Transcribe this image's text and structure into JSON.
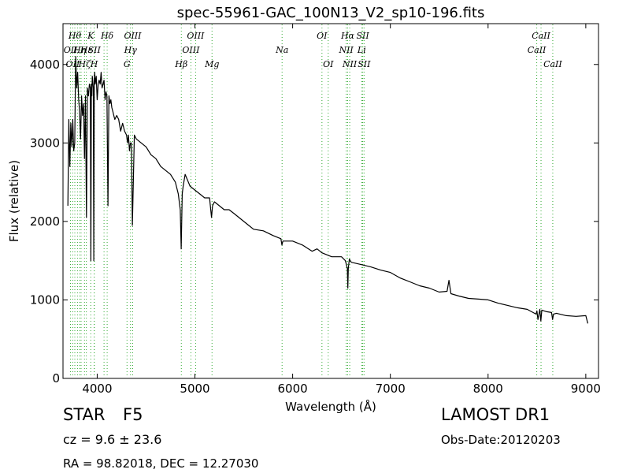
{
  "chart_data": {
    "type": "line",
    "title": "spec-55961-GAC_100N13_V2_sp10-196.fits",
    "xlabel": "Wavelength (Å)",
    "ylabel": "Flux (relative)",
    "xlim": [
      3650,
      9130
    ],
    "ylim": [
      0,
      4520
    ],
    "xticks": [
      4000,
      5000,
      6000,
      7000,
      8000,
      9000
    ],
    "yticks": [
      0,
      1000,
      2000,
      3000,
      4000
    ],
    "grid": false,
    "line_color": "#000000",
    "marker_color": "#33aa33",
    "series": [
      {
        "x": [
          3700,
          3710,
          3720,
          3730,
          3740,
          3750,
          3760,
          3770,
          3780,
          3790,
          3800,
          3810,
          3820,
          3830,
          3840,
          3850,
          3860,
          3870,
          3880,
          3890,
          3900,
          3910,
          3920,
          3930,
          3935,
          3940,
          3945,
          3950,
          3960,
          3965,
          3970,
          3975,
          3980,
          3990,
          4000,
          4010,
          4020,
          4030,
          4040,
          4050,
          4060,
          4070,
          4080,
          4090,
          4100,
          4110,
          4120,
          4130,
          4140,
          4150,
          4160,
          4170,
          4180,
          4200,
          4220,
          4240,
          4260,
          4280,
          4300,
          4310,
          4320,
          4330,
          4340,
          4350,
          4360,
          4380,
          4400,
          4450,
          4500,
          4550,
          4600,
          4650,
          4700,
          4750,
          4800,
          4830,
          4850,
          4860,
          4870,
          4880,
          4900,
          4950,
          5000,
          5050,
          5100,
          5150,
          5170,
          5180,
          5200,
          5250,
          5300,
          5350,
          5400,
          5450,
          5500,
          5550,
          5600,
          5700,
          5800,
          5880,
          5890,
          5900,
          6000,
          6100,
          6200,
          6250,
          6300,
          6400,
          6500,
          6540,
          6560,
          6565,
          6570,
          6580,
          6600,
          6700,
          6800,
          6900,
          7000,
          7100,
          7200,
          7300,
          7400,
          7500,
          7580,
          7600,
          7620,
          7700,
          7800,
          7900,
          8000,
          8100,
          8200,
          8300,
          8400,
          8490,
          8500,
          8510,
          8530,
          8540,
          8550,
          8600,
          8650,
          8660,
          8670,
          8700,
          8800,
          8900,
          9000,
          9020
        ],
        "y": [
          2200,
          3300,
          2700,
          3250,
          2950,
          3300,
          2900,
          3000,
          4100,
          3700,
          3900,
          3550,
          3400,
          3050,
          3600,
          3350,
          3500,
          2800,
          3600,
          2050,
          3700,
          3600,
          3750,
          3700,
          1500,
          3750,
          3600,
          3850,
          3700,
          1500,
          3800,
          3900,
          3750,
          3850,
          3550,
          3750,
          3800,
          3750,
          3900,
          3700,
          3750,
          3800,
          3550,
          3650,
          3600,
          2200,
          3600,
          3500,
          3550,
          3450,
          3400,
          3350,
          3300,
          3350,
          3300,
          3150,
          3250,
          3150,
          3100,
          3000,
          3100,
          2900,
          3000,
          3000,
          1950,
          3100,
          3050,
          3000,
          2950,
          2850,
          2800,
          2700,
          2650,
          2600,
          2500,
          2350,
          2150,
          1650,
          2350,
          2450,
          2600,
          2450,
          2400,
          2350,
          2300,
          2300,
          2050,
          2200,
          2250,
          2200,
          2150,
          2150,
          2100,
          2050,
          2000,
          1950,
          1900,
          1880,
          1820,
          1780,
          1700,
          1750,
          1750,
          1700,
          1620,
          1650,
          1600,
          1550,
          1550,
          1500,
          1400,
          1150,
          1400,
          1520,
          1480,
          1450,
          1420,
          1380,
          1350,
          1280,
          1230,
          1180,
          1150,
          1100,
          1110,
          1250,
          1080,
          1050,
          1020,
          1010,
          1000,
          960,
          930,
          900,
          880,
          820,
          860,
          750,
          880,
          730,
          870,
          850,
          840,
          750,
          820,
          830,
          800,
          790,
          800,
          700
        ]
      }
    ],
    "markers": [
      {
        "wavelength": 3727,
        "row": 1,
        "label": "OII"
      },
      {
        "wavelength": 3750,
        "row": 2,
        "label": "OII"
      },
      {
        "wavelength": 3771,
        "row": 0,
        "label": "Hθ"
      },
      {
        "wavelength": 3798,
        "row": 0,
        "label": ""
      },
      {
        "wavelength": 3820,
        "row": 1,
        "label": "Hη"
      },
      {
        "wavelength": 3835,
        "row": 2,
        "label": ""
      },
      {
        "wavelength": 3870,
        "row": 2,
        "label": "Hζ"
      },
      {
        "wavelength": 3889,
        "row": 1,
        "label": "Hε"
      },
      {
        "wavelength": 3934,
        "row": 0,
        "label": "K"
      },
      {
        "wavelength": 3969,
        "row": 2,
        "label": "H"
      },
      {
        "wavelength": 3970,
        "row": 1,
        "label": "SII"
      },
      {
        "wavelength": 4070,
        "row": 1,
        "label": ""
      },
      {
        "wavelength": 4102,
        "row": 0,
        "label": "Hδ"
      },
      {
        "wavelength": 4305,
        "row": 2,
        "label": "G"
      },
      {
        "wavelength": 4341,
        "row": 1,
        "label": "Hγ"
      },
      {
        "wavelength": 4363,
        "row": 0,
        "label": "OIII"
      },
      {
        "wavelength": 4861,
        "row": 2,
        "label": "Hβ"
      },
      {
        "wavelength": 4959,
        "row": 1,
        "label": "OIII"
      },
      {
        "wavelength": 5007,
        "row": 0,
        "label": "OIII"
      },
      {
        "wavelength": 5175,
        "row": 2,
        "label": "Mg"
      },
      {
        "wavelength": 5892,
        "row": 1,
        "label": "Na"
      },
      {
        "wavelength": 6300,
        "row": 0,
        "label": "OI"
      },
      {
        "wavelength": 6364,
        "row": 2,
        "label": "OI"
      },
      {
        "wavelength": 6548,
        "row": 1,
        "label": "NII"
      },
      {
        "wavelength": 6563,
        "row": 0,
        "label": "Hα"
      },
      {
        "wavelength": 6584,
        "row": 2,
        "label": "NII"
      },
      {
        "wavelength": 6717,
        "row": 0,
        "label": "SII"
      },
      {
        "wavelength": 6731,
        "row": 2,
        "label": "SII"
      },
      {
        "wavelength": 6707,
        "row": 1,
        "label": "Li"
      },
      {
        "wavelength": 8498,
        "row": 1,
        "label": "CaII"
      },
      {
        "wavelength": 8542,
        "row": 0,
        "label": "CaII"
      },
      {
        "wavelength": 8662,
        "row": 2,
        "label": "CaII"
      }
    ]
  },
  "info": {
    "object_class": "STAR",
    "subclass": "F5",
    "cz": "cz = 9.6 ± 23.6",
    "coords": "RA = 98.82018, DEC = 12.27030",
    "survey": "LAMOST DR1",
    "obs_date": "Obs-Date:20120203"
  }
}
